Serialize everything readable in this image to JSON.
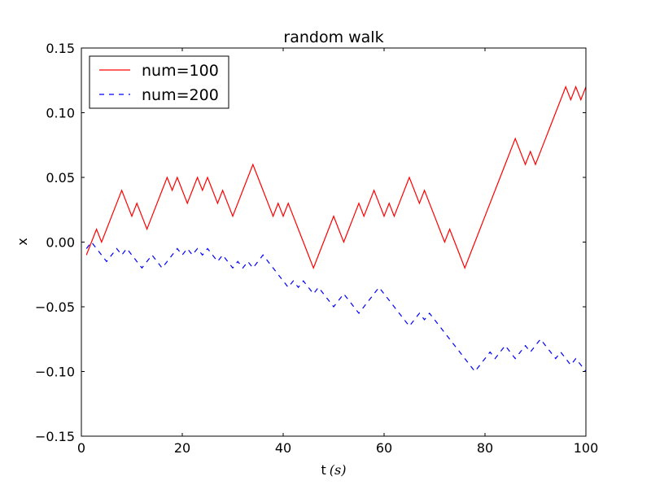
{
  "chart_data": {
    "type": "line",
    "title": "random walk",
    "xlabel": "t",
    "xlabel_unit": "(s)",
    "ylabel": "x",
    "xlim": [
      0,
      100
    ],
    "ylim": [
      -0.15,
      0.15
    ],
    "xticks": [
      0,
      20,
      40,
      60,
      80,
      100
    ],
    "xtick_labels": [
      "0",
      "20",
      "40",
      "60",
      "80",
      "100"
    ],
    "yticks": [
      -0.15,
      -0.1,
      -0.05,
      0.0,
      0.05,
      0.1,
      0.15
    ],
    "ytick_labels": [
      "−0.15",
      "−0.10",
      "−0.05",
      "0.00",
      "0.05",
      "0.10",
      "0.15"
    ],
    "grid": false,
    "legend_position": "top-left",
    "series": [
      {
        "name": "num=100",
        "color": "#ff0000",
        "linestyle": "solid",
        "x": [
          1,
          2,
          3,
          4,
          5,
          6,
          7,
          8,
          9,
          10,
          11,
          12,
          13,
          14,
          15,
          16,
          17,
          18,
          19,
          20,
          21,
          22,
          23,
          24,
          25,
          26,
          27,
          28,
          29,
          30,
          31,
          32,
          33,
          34,
          35,
          36,
          37,
          38,
          39,
          40,
          41,
          42,
          43,
          44,
          45,
          46,
          47,
          48,
          49,
          50,
          51,
          52,
          53,
          54,
          55,
          56,
          57,
          58,
          59,
          60,
          61,
          62,
          63,
          64,
          65,
          66,
          67,
          68,
          69,
          70,
          71,
          72,
          73,
          74,
          75,
          76,
          77,
          78,
          79,
          80,
          81,
          82,
          83,
          84,
          85,
          86,
          87,
          88,
          89,
          90,
          91,
          92,
          93,
          94,
          95,
          96,
          97,
          98,
          99,
          100
        ],
        "y": [
          -0.01,
          0.0,
          0.01,
          0.0,
          0.01,
          0.02,
          0.03,
          0.04,
          0.03,
          0.02,
          0.03,
          0.02,
          0.01,
          0.02,
          0.03,
          0.04,
          0.05,
          0.04,
          0.05,
          0.04,
          0.03,
          0.04,
          0.05,
          0.04,
          0.05,
          0.04,
          0.03,
          0.04,
          0.03,
          0.02,
          0.03,
          0.04,
          0.05,
          0.06,
          0.05,
          0.04,
          0.03,
          0.02,
          0.03,
          0.02,
          0.03,
          0.02,
          0.01,
          0.0,
          -0.01,
          -0.02,
          -0.01,
          0.0,
          0.01,
          0.02,
          0.01,
          0.0,
          0.01,
          0.02,
          0.03,
          0.02,
          0.03,
          0.04,
          0.03,
          0.02,
          0.03,
          0.02,
          0.03,
          0.04,
          0.05,
          0.04,
          0.03,
          0.04,
          0.03,
          0.02,
          0.01,
          0.0,
          0.01,
          0.0,
          -0.01,
          -0.02,
          -0.01,
          0.0,
          0.01,
          0.02,
          0.03,
          0.04,
          0.05,
          0.06,
          0.07,
          0.08,
          0.07,
          0.06,
          0.07,
          0.06,
          0.07,
          0.08,
          0.09,
          0.1,
          0.11,
          0.12,
          0.11,
          0.12,
          0.11,
          0.12
        ]
      },
      {
        "name": "num=200",
        "color": "#0000ff",
        "linestyle": "dashed",
        "x": [
          1,
          1.5,
          2,
          2.5,
          3,
          3.5,
          4,
          4.5,
          5,
          5.5,
          6,
          6.5,
          7,
          7.5,
          8,
          8.5,
          9,
          9.5,
          10,
          10.5,
          11,
          11.5,
          12,
          12.5,
          13,
          13.5,
          14,
          14.5,
          15,
          15.5,
          16,
          16.5,
          17,
          17.5,
          18,
          18.5,
          19,
          19.5,
          20,
          20.5,
          21,
          21.5,
          22,
          22.5,
          23,
          23.5,
          24,
          24.5,
          25,
          25.5,
          26,
          26.5,
          27,
          27.5,
          28,
          28.5,
          29,
          29.5,
          30,
          30.5,
          31,
          31.5,
          32,
          32.5,
          33,
          33.5,
          34,
          34.5,
          35,
          35.5,
          36,
          36.5,
          37,
          37.5,
          38,
          38.5,
          39,
          39.5,
          40,
          40.5,
          41,
          41.5,
          42,
          42.5,
          43,
          43.5,
          44,
          44.5,
          45,
          45.5,
          46,
          46.5,
          47,
          47.5,
          48,
          48.5,
          49,
          49.5,
          50,
          50.5,
          51,
          51.5,
          52,
          52.5,
          53,
          53.5,
          54,
          54.5,
          55,
          55.5,
          56,
          56.5,
          57,
          57.5,
          58,
          58.5,
          59,
          59.5,
          60,
          60.5,
          61,
          61.5,
          62,
          62.5,
          63,
          63.5,
          64,
          64.5,
          65,
          65.5,
          66,
          66.5,
          67,
          67.5,
          68,
          68.5,
          69,
          69.5,
          70,
          70.5,
          71,
          71.5,
          72,
          72.5,
          73,
          73.5,
          74,
          74.5,
          75,
          75.5,
          76,
          76.5,
          77,
          77.5,
          78,
          78.5,
          79,
          79.5,
          80,
          80.5,
          81,
          81.5,
          82,
          82.5,
          83,
          83.5,
          84,
          84.5,
          85,
          85.5,
          86,
          86.5,
          87,
          87.5,
          88,
          88.5,
          89,
          89.5,
          90,
          90.5,
          91,
          91.5,
          92,
          92.5,
          93,
          93.5,
          94,
          94.5,
          95,
          95.5,
          96,
          96.5,
          97,
          97.5,
          98,
          98.5,
          99,
          99.5,
          100
        ],
        "y": [
          -0.005,
          -0.0025,
          0.0,
          -0.0025,
          -0.005,
          -0.0075,
          -0.01,
          -0.0125,
          -0.015,
          -0.0125,
          -0.01,
          -0.0075,
          -0.005,
          -0.0075,
          -0.01,
          -0.0075,
          -0.005,
          -0.0075,
          -0.01,
          -0.0125,
          -0.015,
          -0.0175,
          -0.02,
          -0.0175,
          -0.015,
          -0.0125,
          -0.01,
          -0.0125,
          -0.015,
          -0.0175,
          -0.02,
          -0.0175,
          -0.015,
          -0.0125,
          -0.01,
          -0.0075,
          -0.005,
          -0.0075,
          -0.01,
          -0.0075,
          -0.005,
          -0.0075,
          -0.01,
          -0.0075,
          -0.005,
          -0.0075,
          -0.01,
          -0.0075,
          -0.005,
          -0.0075,
          -0.01,
          -0.0125,
          -0.015,
          -0.0125,
          -0.01,
          -0.0125,
          -0.015,
          -0.0175,
          -0.02,
          -0.0175,
          -0.015,
          -0.0175,
          -0.02,
          -0.0175,
          -0.015,
          -0.0175,
          -0.02,
          -0.0175,
          -0.015,
          -0.0125,
          -0.01,
          -0.0125,
          -0.015,
          -0.0175,
          -0.02,
          -0.0225,
          -0.025,
          -0.0275,
          -0.03,
          -0.0325,
          -0.035,
          -0.0325,
          -0.03,
          -0.0325,
          -0.035,
          -0.0325,
          -0.03,
          -0.0325,
          -0.035,
          -0.0375,
          -0.04,
          -0.0375,
          -0.035,
          -0.0375,
          -0.04,
          -0.0425,
          -0.045,
          -0.0475,
          -0.05,
          -0.0475,
          -0.045,
          -0.0425,
          -0.04,
          -0.0425,
          -0.045,
          -0.0475,
          -0.05,
          -0.0525,
          -0.055,
          -0.0525,
          -0.05,
          -0.0475,
          -0.045,
          -0.0425,
          -0.04,
          -0.0375,
          -0.035,
          -0.0375,
          -0.04,
          -0.0425,
          -0.045,
          -0.0475,
          -0.05,
          -0.0525,
          -0.055,
          -0.0575,
          -0.06,
          -0.0625,
          -0.065,
          -0.0625,
          -0.06,
          -0.0575,
          -0.055,
          -0.0575,
          -0.06,
          -0.0575,
          -0.055,
          -0.0575,
          -0.06,
          -0.0625,
          -0.065,
          -0.0675,
          -0.07,
          -0.0725,
          -0.075,
          -0.0775,
          -0.08,
          -0.0825,
          -0.085,
          -0.0875,
          -0.09,
          -0.0925,
          -0.095,
          -0.0975,
          -0.1,
          -0.0975,
          -0.095,
          -0.0925,
          -0.09,
          -0.0875,
          -0.085,
          -0.0875,
          -0.09,
          -0.0875,
          -0.085,
          -0.0825,
          -0.08,
          -0.0825,
          -0.085,
          -0.0875,
          -0.09,
          -0.0875,
          -0.085,
          -0.0825,
          -0.08,
          -0.0825,
          -0.085,
          -0.0825,
          -0.08,
          -0.0775,
          -0.075,
          -0.0775,
          -0.08,
          -0.0825,
          -0.085,
          -0.0875,
          -0.09,
          -0.0875,
          -0.085,
          -0.0875,
          -0.09,
          -0.0925,
          -0.095,
          -0.0925,
          -0.09,
          -0.0925,
          -0.095,
          -0.0975,
          -0.1
        ]
      }
    ]
  }
}
